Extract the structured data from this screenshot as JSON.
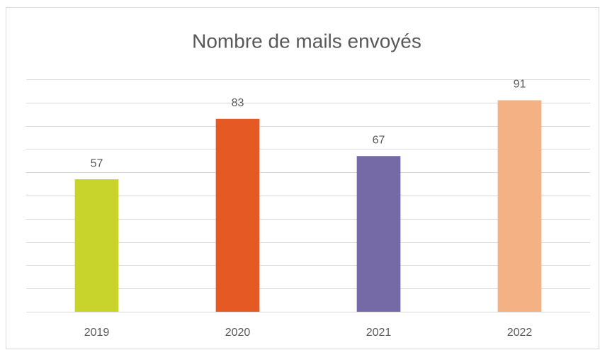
{
  "chart_data": {
    "type": "bar",
    "title": "Nombre de mails envoyés",
    "categories": [
      "2019",
      "2020",
      "2021",
      "2022"
    ],
    "values": [
      57,
      83,
      67,
      91
    ],
    "colors": [
      "#c8d32b",
      "#e55a24",
      "#766aa6",
      "#f4b183"
    ],
    "ylim": [
      0,
      100
    ],
    "yticks": [
      0,
      10,
      20,
      30,
      40,
      50,
      60,
      70,
      80,
      90,
      100
    ],
    "grid": true,
    "data_labels": true
  }
}
